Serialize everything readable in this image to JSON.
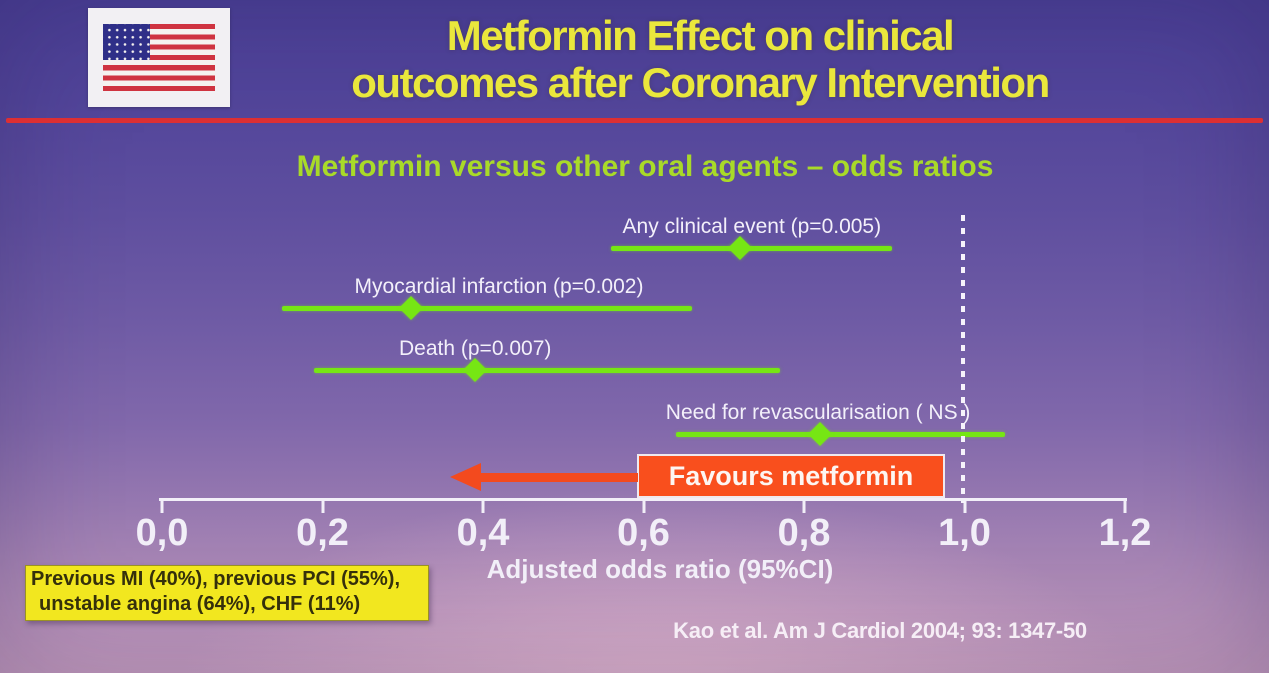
{
  "header": {
    "title_line1": "Metformin Effect on clinical",
    "title_line2": "outcomes after Coronary Intervention",
    "subtitle": "Metformin versus other oral agents – odds ratios"
  },
  "icons": {
    "top_left": "us-flag-icon"
  },
  "chart_data": {
    "type": "scatter",
    "subtype": "forest-plot-odds-ratios",
    "title": "Metformin versus other oral agents – odds ratios",
    "xlabel": "Adjusted odds ratio (95%CI)",
    "xlim": [
      0,
      1.2
    ],
    "x_tick_labels": [
      "0,0",
      "0,2",
      "0,4",
      "0,6",
      "0,8",
      "1,0",
      "1,2"
    ],
    "x_tick_values": [
      0,
      0.2,
      0.4,
      0.6,
      0.8,
      1.0,
      1.2
    ],
    "reference_line": 1.0,
    "grid": false,
    "legend": "none",
    "rows": [
      {
        "label": "Any clinical event (p=0.005)",
        "odds_ratio": 0.72,
        "ci_low": 0.56,
        "ci_high": 0.91
      },
      {
        "label": "Myocardial infarction (p=0.002)",
        "odds_ratio": 0.31,
        "ci_low": 0.15,
        "ci_high": 0.66
      },
      {
        "label": "Death (p=0.007)",
        "odds_ratio": 0.39,
        "ci_low": 0.19,
        "ci_high": 0.77
      },
      {
        "label": "Need for revascularisation ( NS )",
        "odds_ratio": 0.82,
        "ci_low": 0.64,
        "ci_high": 1.05
      }
    ],
    "favours_label": "Favours metformin",
    "arrow_direction": "left"
  },
  "note_box": {
    "line1": "Previous MI (40%), previous PCI (55%),",
    "line2": "unstable angina (64%), CHF (11%)"
  },
  "footer": {
    "citation": "Kao et al. Am J Cardiol 2004; 93: 1347-50"
  },
  "colors": {
    "title_yellow": "#EAE73C",
    "subtitle_green": "#A9DA28",
    "ci_line_green": "#76E614",
    "favours_orange": "#F94F1D",
    "arrow_orange": "#F34A1E",
    "divider_red": "#DD2F33",
    "note_bg_yellow": "#F2E71F",
    "axis_white": "#F2EFF8",
    "background_top": "#4B4097",
    "background_bottom": "#C59DBF"
  }
}
